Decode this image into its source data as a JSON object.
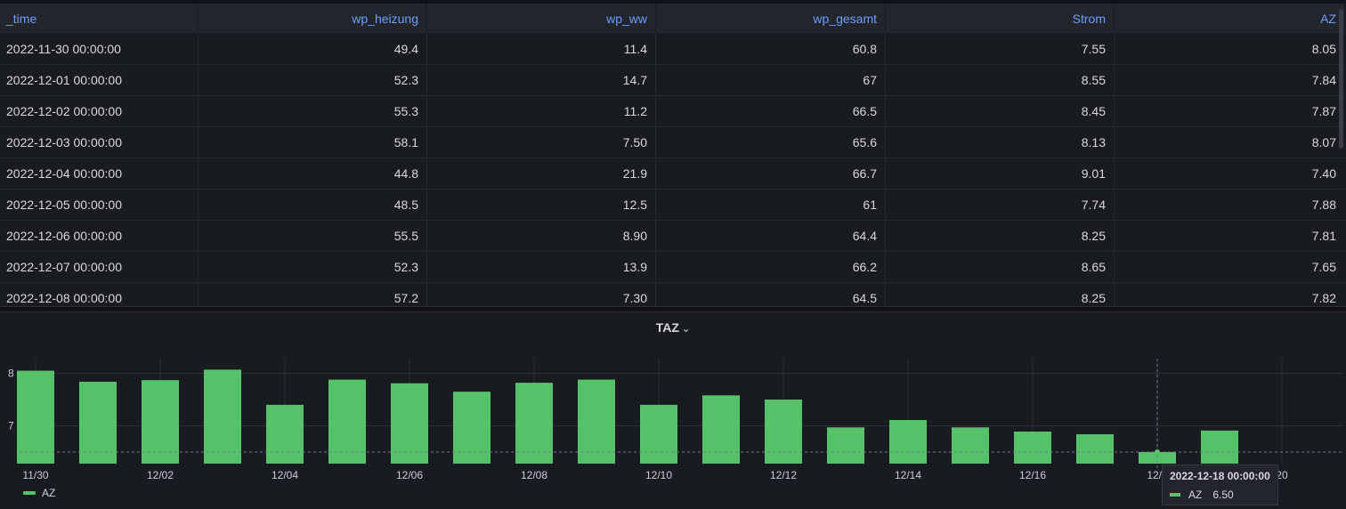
{
  "table": {
    "columns": [
      "_time",
      "wp_heizung",
      "wp_ww",
      "wp_gesamt",
      "Strom",
      "AZ"
    ],
    "rows": [
      [
        "2022-11-30 00:00:00",
        "49.4",
        "11.4",
        "60.8",
        "7.55",
        "8.05"
      ],
      [
        "2022-12-01 00:00:00",
        "52.3",
        "14.7",
        "67",
        "8.55",
        "7.84"
      ],
      [
        "2022-12-02 00:00:00",
        "55.3",
        "11.2",
        "66.5",
        "8.45",
        "7.87"
      ],
      [
        "2022-12-03 00:00:00",
        "58.1",
        "7.50",
        "65.6",
        "8.13",
        "8.07"
      ],
      [
        "2022-12-04 00:00:00",
        "44.8",
        "21.9",
        "66.7",
        "9.01",
        "7.40"
      ],
      [
        "2022-12-05 00:00:00",
        "48.5",
        "12.5",
        "61",
        "7.74",
        "7.88"
      ],
      [
        "2022-12-06 00:00:00",
        "55.5",
        "8.90",
        "64.4",
        "8.25",
        "7.81"
      ],
      [
        "2022-12-07 00:00:00",
        "52.3",
        "13.9",
        "66.2",
        "8.65",
        "7.65"
      ],
      [
        "2022-12-08 00:00:00",
        "57.2",
        "7.30",
        "64.5",
        "8.25",
        "7.82"
      ]
    ]
  },
  "panel": {
    "title": "TAZ",
    "chevron": "chevron-down-icon"
  },
  "chart_data": {
    "type": "bar",
    "series": [
      {
        "name": "AZ",
        "color": "#56c26a",
        "values": [
          8.05,
          7.84,
          7.87,
          8.07,
          7.4,
          7.88,
          7.81,
          7.65,
          7.82,
          7.88,
          7.4,
          7.58,
          7.5,
          6.97,
          7.11,
          6.97,
          6.89,
          6.84,
          6.5,
          6.91
        ]
      }
    ],
    "categories": [
      "2022-11-30",
      "2022-12-01",
      "2022-12-02",
      "2022-12-03",
      "2022-12-04",
      "2022-12-05",
      "2022-12-06",
      "2022-12-07",
      "2022-12-08",
      "2022-12-09",
      "2022-12-10",
      "2022-12-11",
      "2022-12-12",
      "2022-12-13",
      "2022-12-14",
      "2022-12-15",
      "2022-12-16",
      "2022-12-17",
      "2022-12-18",
      "2022-12-19"
    ],
    "x_tick_labels": [
      "11/30",
      "12/02",
      "12/04",
      "12/06",
      "12/08",
      "12/10",
      "12/12",
      "12/14",
      "12/16",
      "12/1",
      "20"
    ],
    "y_tick_labels": [
      "8",
      "7"
    ],
    "ylim": [
      6.28,
      8.28
    ],
    "grid": true,
    "legend": "bottom-left",
    "hover_value": 6.5
  },
  "tooltip": {
    "time": "2022-12-18 00:00:00",
    "series": "AZ",
    "value": "6.50"
  }
}
